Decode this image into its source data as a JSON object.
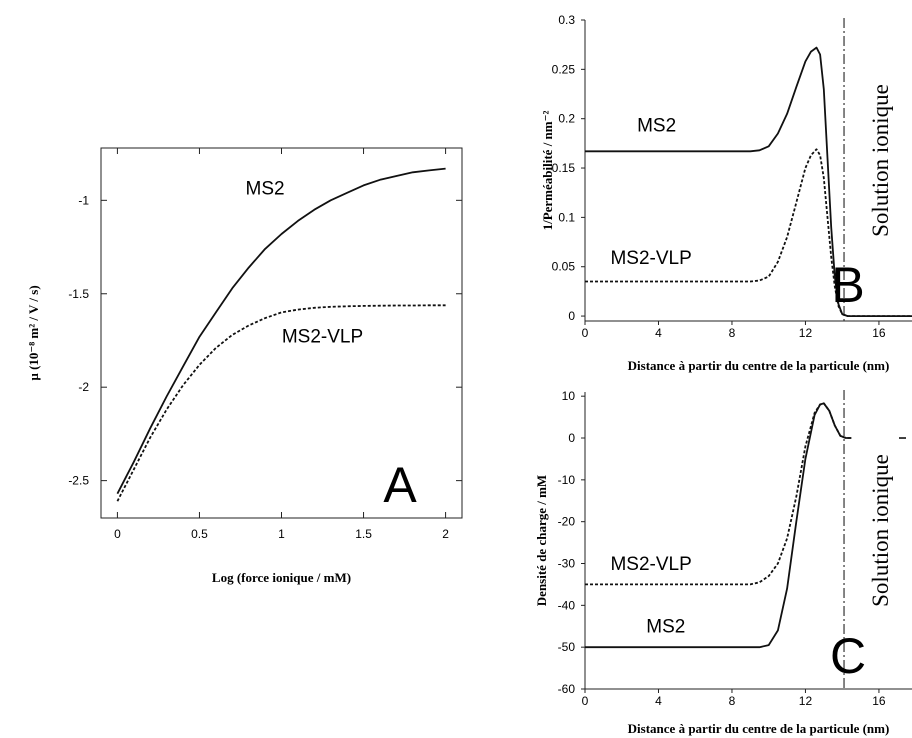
{
  "chart_data": [
    {
      "panel": "A",
      "type": "line",
      "xlabel": "Log (force ionique / mM)",
      "ylabel": "µ (10⁻⁸ m² / V / s)",
      "xlim": [
        -0.1,
        2.1
      ],
      "ylim": [
        -2.7,
        -0.72
      ],
      "xticks": [
        0,
        0.5,
        1,
        1.5,
        2
      ],
      "xtick_labels": [
        "0",
        "0.5",
        "1",
        "1.5",
        "2"
      ],
      "yticks": [
        -2.5,
        -2,
        -1.5,
        -1
      ],
      "ytick_labels": [
        "-2.5",
        "-2",
        "-1.5",
        "-1"
      ],
      "series": [
        {
          "name": "MS2",
          "style": "solid",
          "x": [
            0,
            0.1,
            0.2,
            0.3,
            0.4,
            0.5,
            0.6,
            0.7,
            0.8,
            0.9,
            1.0,
            1.1,
            1.2,
            1.3,
            1.4,
            1.5,
            1.6,
            1.7,
            1.8,
            1.9,
            2.0
          ],
          "y": [
            -2.57,
            -2.4,
            -2.22,
            -2.05,
            -1.89,
            -1.73,
            -1.6,
            -1.47,
            -1.36,
            -1.26,
            -1.18,
            -1.11,
            -1.05,
            -1.0,
            -0.96,
            -0.92,
            -0.89,
            -0.87,
            -0.85,
            -0.84,
            -0.83
          ]
        },
        {
          "name": "MS2-VLP",
          "style": "dashed",
          "x": [
            0,
            0.1,
            0.2,
            0.3,
            0.4,
            0.5,
            0.6,
            0.7,
            0.8,
            0.9,
            1.0,
            1.1,
            1.2,
            1.3,
            1.4,
            1.5,
            1.6,
            1.7,
            1.8,
            1.9,
            2.0
          ],
          "y": [
            -2.61,
            -2.44,
            -2.27,
            -2.12,
            -1.99,
            -1.88,
            -1.79,
            -1.72,
            -1.67,
            -1.63,
            -1.6,
            -1.585,
            -1.575,
            -1.57,
            -1.567,
            -1.565,
            -1.564,
            -1.563,
            -1.563,
            -1.562,
            -1.562
          ]
        }
      ],
      "labels": [
        {
          "text": "MS2",
          "x": 0.9,
          "y": -0.97
        },
        {
          "text": "MS2-VLP",
          "x": 1.25,
          "y": -1.76
        }
      ],
      "panel_letter": "A"
    },
    {
      "panel": "B",
      "type": "line",
      "xlabel": "Distance à partir du centre de la particule (nm)",
      "ylabel": "1/Perméabilité / nm⁻²",
      "xlim": [
        0,
        17.8
      ],
      "ylim": [
        -0.005,
        0.3
      ],
      "xticks": [
        0,
        4,
        8,
        12,
        16
      ],
      "xtick_labels": [
        "0",
        "4",
        "8",
        "12",
        "16"
      ],
      "yticks": [
        0,
        0.05,
        0.1,
        0.15,
        0.2,
        0.25,
        0.3
      ],
      "ytick_labels": [
        "0",
        "0.05",
        "0.1",
        "0.15",
        "0.2",
        "0.25",
        "0.3"
      ],
      "series": [
        {
          "name": "MS2",
          "style": "solid",
          "x": [
            0,
            9,
            9.5,
            10,
            10.5,
            11,
            11.5,
            12,
            12.3,
            12.6,
            12.8,
            13.0,
            13.2,
            13.4,
            13.6,
            13.8,
            14.0,
            14.3,
            17.8
          ],
          "y": [
            0.167,
            0.167,
            0.168,
            0.172,
            0.185,
            0.205,
            0.232,
            0.258,
            0.268,
            0.272,
            0.265,
            0.23,
            0.16,
            0.09,
            0.04,
            0.012,
            0.002,
            0,
            0
          ]
        },
        {
          "name": "MS2-VLP",
          "style": "dashed",
          "x": [
            0,
            9,
            9.5,
            10,
            10.5,
            11,
            11.5,
            12,
            12.3,
            12.6,
            12.8,
            13.0,
            13.2,
            13.4,
            13.6,
            13.8,
            14.0,
            14.3,
            17.8
          ],
          "y": [
            0.035,
            0.035,
            0.036,
            0.04,
            0.055,
            0.08,
            0.115,
            0.15,
            0.163,
            0.169,
            0.163,
            0.14,
            0.1,
            0.06,
            0.03,
            0.01,
            0.002,
            0,
            0
          ]
        }
      ],
      "vline_x": 14.1,
      "labels": [
        {
          "text": "MS2",
          "x": 3.9,
          "y": 0.187
        },
        {
          "text": "MS2-VLP",
          "x": 3.6,
          "y": 0.053
        }
      ],
      "region_label": "Solution ionique",
      "panel_letter": "B"
    },
    {
      "panel": "C",
      "type": "line",
      "xlabel": "Distance à partir du centre de la particule (nm)",
      "ylabel": "Densité de charge / mM",
      "xlim": [
        0,
        17.8
      ],
      "ylim": [
        -60,
        11
      ],
      "xticks": [
        0,
        4,
        8,
        12,
        16
      ],
      "xtick_labels": [
        "0",
        "4",
        "8",
        "12",
        "16"
      ],
      "yticks": [
        -60,
        -50,
        -40,
        -30,
        -20,
        -10,
        0,
        10
      ],
      "ytick_labels": [
        "-60",
        "-50",
        "-40",
        "-30",
        "-20",
        "-10",
        "0",
        "10"
      ],
      "series": [
        {
          "name": "MS2",
          "style": "solid",
          "x": [
            0,
            9.5,
            10,
            10.5,
            11,
            11.5,
            12,
            12.5,
            12.8,
            13.0,
            13.3,
            13.6,
            13.9,
            14.2,
            14.5
          ],
          "y": [
            -50,
            -50,
            -49.5,
            -46,
            -36,
            -20,
            -5,
            5.5,
            8,
            8.3,
            6.5,
            3,
            0.5,
            0,
            0
          ]
        },
        {
          "name": "MS2-VLP",
          "style": "dashed",
          "x": [
            0,
            9.0,
            9.5,
            10,
            10.5,
            11,
            11.5,
            12,
            12.5,
            12.8,
            13.0,
            13.3,
            13.6,
            13.9,
            14.2,
            14.5
          ],
          "y": [
            -35,
            -35,
            -34.5,
            -33,
            -30,
            -24,
            -14,
            -2,
            6,
            8,
            8.3,
            6.5,
            3,
            0.5,
            0,
            0
          ]
        }
      ],
      "vline_x": 14.1,
      "labels": [
        {
          "text": "MS2-VLP",
          "x": 3.6,
          "y": -31.5
        },
        {
          "text": "MS2",
          "x": 4.4,
          "y": -46.5
        }
      ],
      "region_label": "Solution ionique",
      "panel_letter": "C"
    }
  ]
}
